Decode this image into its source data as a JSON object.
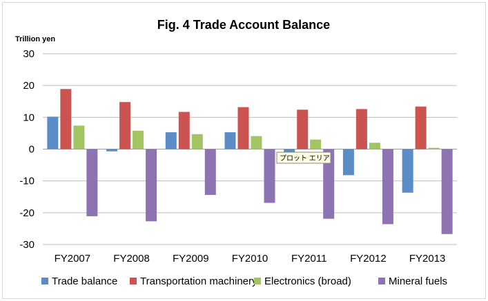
{
  "chart_data": {
    "type": "bar",
    "title": "Fig. 4 Trade Account Balance",
    "ylabel": "Trillion yen",
    "ylim": [
      -30,
      30
    ],
    "yticks": [
      30,
      20,
      10,
      0,
      -10,
      -20,
      -30
    ],
    "grid": true,
    "legend_position": "bottom",
    "categories": [
      "FY2007",
      "FY2008",
      "FY2009",
      "FY2010",
      "FY2011",
      "FY2012",
      "FY2013"
    ],
    "series": [
      {
        "name": "Trade balance",
        "color": "#5b8cc8",
        "values": [
          10.2,
          -0.7,
          5.3,
          5.3,
          -1.4,
          -8.2,
          -13.7
        ]
      },
      {
        "name": "Transportation machinery",
        "color": "#cb5451",
        "values": [
          18.9,
          14.8,
          11.7,
          13.2,
          12.4,
          12.6,
          13.4
        ]
      },
      {
        "name": "Electronics (broad)",
        "color": "#a2c462",
        "values": [
          7.4,
          5.8,
          4.7,
          4.1,
          3.0,
          2.0,
          0.4
        ]
      },
      {
        "name": "Mineral fuels",
        "color": "#8e73b3",
        "values": [
          -21.1,
          -22.7,
          -14.4,
          -16.9,
          -21.9,
          -23.6,
          -26.7
        ]
      }
    ]
  },
  "tooltip": {
    "text": "プロット エリア"
  }
}
